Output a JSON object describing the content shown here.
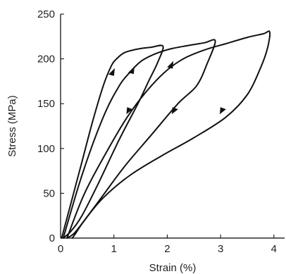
{
  "chart_data": {
    "type": "line",
    "title": "",
    "xlabel": "Strain (%)",
    "ylabel": "Stress (MPa)",
    "xlim": [
      0,
      4.2
    ],
    "ylim": [
      0,
      250
    ],
    "xticks": [
      0,
      1,
      2,
      3,
      4
    ],
    "yticks": [
      0,
      50,
      100,
      150,
      200,
      250
    ],
    "grid": false,
    "legend": "none",
    "colors": {
      "line": "#111111",
      "axis": "#000000"
    },
    "series": [
      {
        "points": [
          [
            0.02,
            0
          ],
          [
            0.2,
            40
          ],
          [
            0.4,
            85
          ],
          [
            0.6,
            130
          ],
          [
            0.8,
            170
          ],
          [
            0.95,
            192
          ],
          [
            1.05,
            200
          ],
          [
            1.2,
            207
          ],
          [
            1.45,
            211
          ],
          [
            1.7,
            213
          ],
          [
            1.92,
            214
          ],
          [
            1.82,
            196
          ],
          [
            1.65,
            175
          ],
          [
            1.45,
            150
          ],
          [
            1.1,
            110
          ],
          [
            0.7,
            60
          ],
          [
            0.4,
            25
          ],
          [
            0.2,
            8
          ],
          [
            0.05,
            0
          ]
        ]
      },
      {
        "points": [
          [
            0.05,
            0
          ],
          [
            0.4,
            70
          ],
          [
            0.8,
            135
          ],
          [
            1.1,
            170
          ],
          [
            1.3,
            185
          ],
          [
            1.5,
            197
          ],
          [
            1.75,
            205
          ],
          [
            2.05,
            211
          ],
          [
            2.4,
            215
          ],
          [
            2.7,
            218
          ],
          [
            2.9,
            220
          ],
          [
            2.75,
            195
          ],
          [
            2.55,
            170
          ],
          [
            2.2,
            150
          ],
          [
            1.7,
            115
          ],
          [
            1.2,
            80
          ],
          [
            0.8,
            48
          ],
          [
            0.45,
            20
          ],
          [
            0.25,
            5
          ],
          [
            0.12,
            0
          ]
        ]
      },
      {
        "points": [
          [
            0.12,
            0
          ],
          [
            0.45,
            50
          ],
          [
            0.9,
            100
          ],
          [
            1.25,
            135
          ],
          [
            1.6,
            163
          ],
          [
            1.95,
            185
          ],
          [
            2.3,
            200
          ],
          [
            2.7,
            210
          ],
          [
            3.1,
            217
          ],
          [
            3.5,
            224
          ],
          [
            3.8,
            228
          ],
          [
            3.92,
            230
          ],
          [
            3.88,
            212
          ],
          [
            3.75,
            190
          ],
          [
            3.5,
            160
          ],
          [
            3.1,
            135
          ],
          [
            2.5,
            112
          ],
          [
            1.9,
            92
          ],
          [
            1.3,
            70
          ],
          [
            0.8,
            45
          ],
          [
            0.45,
            20
          ],
          [
            0.28,
            5
          ],
          [
            0.22,
            0
          ]
        ]
      }
    ],
    "arrows": [
      {
        "x": 0.95,
        "y": 185,
        "dir": "up"
      },
      {
        "x": 1.32,
        "y": 187,
        "dir": "up"
      },
      {
        "x": 2.05,
        "y": 193,
        "dir": "up"
      },
      {
        "x": 1.3,
        "y": 143,
        "dir": "down"
      },
      {
        "x": 2.15,
        "y": 143,
        "dir": "down"
      },
      {
        "x": 3.05,
        "y": 143,
        "dir": "down"
      }
    ]
  }
}
